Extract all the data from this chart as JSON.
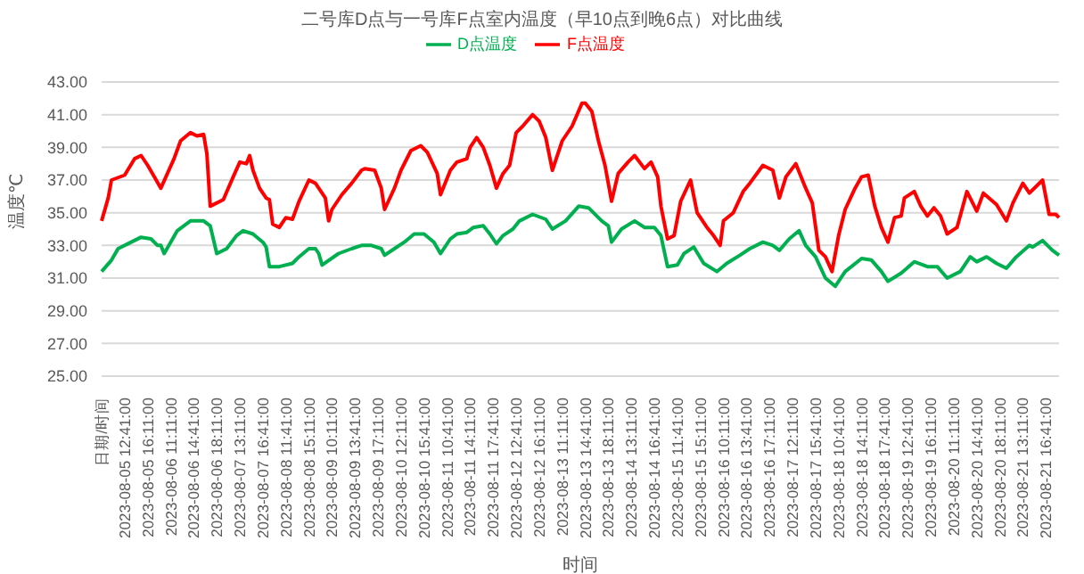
{
  "chart_data": {
    "type": "line",
    "title": "二号库D点与一号库F点室内温度（早10点到晚6点）对比曲线",
    "xlabel": "时间",
    "ylabel": "温度℃",
    "categories": [
      "日期/时间",
      null,
      null,
      null,
      null,
      null,
      null,
      "2023-08-05 12:41:00",
      null,
      null,
      null,
      null,
      null,
      null,
      "2023-08-05 16:11:00",
      null,
      null,
      null,
      null,
      null,
      null,
      "2023-08-06 11:11:00",
      null,
      null,
      null,
      null,
      null,
      null,
      "2023-08-06 14:41:00",
      null,
      null,
      null,
      null,
      null,
      null,
      "2023-08-06 18:11:00",
      null,
      null,
      null,
      null,
      null,
      null,
      "2023-08-07 13:11:00",
      null,
      null,
      null,
      null,
      null,
      null,
      "2023-08-07 16:41:00",
      null,
      null,
      null,
      null,
      null,
      null,
      "2023-08-08 11:41:00",
      null,
      null,
      null,
      null,
      null,
      null,
      "2023-08-08 15:11:00",
      null,
      null,
      null,
      null,
      null,
      null,
      "2023-08-09 10:11:00",
      null,
      null,
      null,
      null,
      null,
      null,
      "2023-08-09 13:41:00",
      null,
      null,
      null,
      null,
      null,
      null,
      "2023-08-09 17:11:00",
      null,
      null,
      null,
      null,
      null,
      null,
      "2023-08-10 12:11:00",
      null,
      null,
      null,
      null,
      null,
      null,
      "2023-08-10 15:41:00",
      null,
      null,
      null,
      null,
      null,
      null,
      "2023-08-11 10:41:00",
      null,
      null,
      null,
      null,
      null,
      null,
      "2023-08-11 14:11:00",
      null,
      null,
      null,
      null,
      null,
      null,
      "2023-08-11 17:41:00",
      null,
      null,
      null,
      null,
      null,
      null,
      "2023-08-12 12:41:00",
      null,
      null,
      null,
      null,
      null,
      null,
      "2023-08-12 16:11:00",
      null,
      null,
      null,
      null,
      null,
      null,
      "2023-08-13 11:11:00",
      null,
      null,
      null,
      null,
      null,
      null,
      "2023-08-13 14:41:00",
      null,
      null,
      null,
      null,
      null,
      null,
      "2023-08-13 18:11:00",
      null,
      null,
      null,
      null,
      null,
      null,
      "2023-08-14 13:11:00",
      null,
      null,
      null,
      null,
      null,
      null,
      "2023-08-14 16:41:00",
      null,
      null,
      null,
      null,
      null,
      null,
      "2023-08-15 11:41:00",
      null,
      null,
      null,
      null,
      null,
      null,
      "2023-08-15 15:11:00",
      null,
      null,
      null,
      null,
      null,
      null,
      "2023-08-16 10:11:00",
      null,
      null,
      null,
      null,
      null,
      null,
      "2023-08-16 13:41:00",
      null,
      null,
      null,
      null,
      null,
      null,
      "2023-08-16 17:11:00",
      null,
      null,
      null,
      null,
      null,
      null,
      "2023-08-17 12:11:00",
      null,
      null,
      null,
      null,
      null,
      null,
      "2023-08-17 15:41:00",
      null,
      null,
      null,
      null,
      null,
      null,
      "2023-08-18 10:41:00",
      null,
      null,
      null,
      null,
      null,
      null,
      "2023-08-18 14:11:00",
      null,
      null,
      null,
      null,
      null,
      null,
      "2023-08-18 17:41:00",
      null,
      null,
      null,
      null,
      null,
      null,
      "2023-08-19 12:41:00",
      null,
      null,
      null,
      null,
      null,
      null,
      "2023-08-19 16:11:00",
      null,
      null,
      null,
      null,
      null,
      null,
      "2023-08-20 11:11:00",
      null,
      null,
      null,
      null,
      null,
      null,
      "2023-08-20 14:41:00",
      null,
      null,
      null,
      null,
      null,
      null,
      "2023-08-20 18:11:00",
      null,
      null,
      null,
      null,
      null,
      null,
      "2023-08-21 13:11:00",
      null,
      null,
      null,
      null,
      null,
      null,
      "2023-08-21 16:41:00",
      null,
      null,
      null,
      null
    ],
    "series": [
      {
        "name": "D点温度",
        "color": "#00b050",
        "values": [
          31.4,
          null,
          null,
          32.1,
          null,
          32.8,
          null,
          null,
          null,
          33.2,
          null,
          null,
          33.5,
          null,
          null,
          33.4,
          null,
          33.0,
          33.0,
          32.5,
          null,
          33.2,
          null,
          33.9,
          null,
          null,
          null,
          34.5,
          null,
          null,
          null,
          34.5,
          null,
          34.2,
          null,
          32.5,
          null,
          null,
          32.8,
          null,
          null,
          33.6,
          null,
          33.9,
          null,
          null,
          33.7,
          null,
          null,
          33.2,
          32.9,
          31.7,
          null,
          null,
          31.7,
          null,
          null,
          null,
          31.9,
          null,
          32.3,
          null,
          null,
          32.8,
          null,
          32.8,
          32.5,
          31.8,
          null,
          null,
          null,
          null,
          32.5,
          null,
          null,
          null,
          32.8,
          null,
          null,
          33.0,
          null,
          null,
          33.0,
          null,
          null,
          32.8,
          32.4,
          null,
          null,
          32.8,
          null,
          null,
          33.2,
          null,
          null,
          33.7,
          null,
          null,
          33.7,
          null,
          null,
          33.2,
          null,
          32.5,
          null,
          null,
          33.4,
          null,
          33.7,
          null,
          null,
          33.8,
          null,
          34.1,
          null,
          null,
          34.2,
          null,
          33.7,
          null,
          33.1,
          null,
          33.6,
          null,
          null,
          34.0,
          null,
          34.5,
          null,
          null,
          null,
          34.9,
          null,
          null,
          null,
          34.6,
          null,
          34.0,
          null,
          null,
          null,
          34.5,
          null,
          null,
          null,
          35.4,
          null,
          null,
          35.3,
          null,
          null,
          null,
          34.5,
          null,
          34.2,
          33.2,
          null,
          null,
          34.0,
          null,
          null,
          null,
          34.5,
          null,
          null,
          34.1,
          null,
          null,
          34.1,
          null,
          33.6,
          null,
          31.7,
          null,
          null,
          31.8,
          null,
          32.5,
          null,
          null,
          32.9,
          null,
          null,
          31.9,
          null,
          null,
          null,
          31.4,
          null,
          null,
          31.9,
          null,
          null,
          null,
          32.4,
          null,
          null,
          32.8,
          null,
          null,
          null,
          33.2,
          null,
          null,
          33.0,
          null,
          32.7,
          null,
          null,
          33.4,
          null,
          null,
          33.9,
          null,
          33.0,
          null,
          null,
          32.3,
          null,
          null,
          31.0,
          null,
          null,
          30.5,
          null,
          null,
          31.4,
          null,
          null,
          null,
          null,
          32.2,
          null,
          null,
          32.1,
          null,
          null,
          31.4,
          null,
          30.8,
          null,
          null,
          null,
          31.3,
          null,
          null,
          null,
          32.0,
          null,
          null,
          null,
          31.7,
          null,
          null,
          31.7,
          null,
          null,
          31.0,
          null,
          null,
          null,
          31.4,
          null,
          null,
          32.3,
          null,
          32.0,
          null,
          null,
          32.3,
          null,
          null,
          31.9,
          null,
          null,
          31.6,
          null,
          null,
          32.3,
          null,
          null,
          null,
          33.0,
          32.9,
          null,
          null,
          33.3,
          null,
          null,
          32.7,
          null,
          32.4
        ]
      },
      {
        "name": "F点温度",
        "color": "#ff0000",
        "values": [
          34.5,
          null,
          35.9,
          37.0,
          null,
          null,
          null,
          37.3,
          null,
          null,
          38.3,
          null,
          38.5,
          null,
          37.9,
          null,
          37.2,
          null,
          36.5,
          null,
          37.4,
          null,
          38.3,
          null,
          39.4,
          null,
          null,
          39.9,
          null,
          39.7,
          null,
          39.8,
          38.6,
          35.4,
          null,
          null,
          null,
          35.8,
          null,
          null,
          37.2,
          null,
          38.1,
          null,
          38.0,
          38.5,
          37.6,
          null,
          36.5,
          null,
          35.9,
          35.8,
          34.3,
          null,
          34.1,
          null,
          34.7,
          null,
          34.6,
          null,
          35.7,
          null,
          null,
          37.0,
          null,
          36.8,
          null,
          null,
          35.9,
          34.5,
          35.2,
          null,
          null,
          36.1,
          null,
          null,
          36.8,
          null,
          null,
          37.6,
          37.7,
          null,
          null,
          37.6,
          null,
          36.5,
          35.2,
          null,
          null,
          36.5,
          null,
          37.6,
          null,
          null,
          38.8,
          null,
          null,
          39.1,
          null,
          38.7,
          null,
          null,
          37.4,
          36.1,
          null,
          null,
          37.6,
          null,
          38.1,
          null,
          null,
          38.3,
          39.0,
          null,
          39.6,
          null,
          39.0,
          null,
          37.9,
          null,
          36.5,
          null,
          37.4,
          null,
          37.9,
          null,
          39.9,
          null,
          40.3,
          null,
          null,
          41.0,
          null,
          40.6,
          null,
          39.6,
          null,
          37.6,
          null,
          null,
          39.4,
          null,
          null,
          40.3,
          null,
          null,
          41.7,
          41.7,
          null,
          41.2,
          null,
          39.4,
          null,
          37.9,
          null,
          35.7,
          null,
          37.4,
          null,
          null,
          38.1,
          null,
          38.5,
          null,
          null,
          37.7,
          null,
          38.1,
          null,
          37.2,
          35.4,
          null,
          33.4,
          null,
          33.6,
          null,
          35.7,
          null,
          null,
          37.0,
          null,
          35.0,
          null,
          null,
          34.1,
          null,
          33.6,
          null,
          33.0,
          34.5,
          null,
          null,
          35.0,
          null,
          null,
          36.3,
          null,
          36.8,
          null,
          null,
          null,
          37.9,
          null,
          null,
          37.6,
          null,
          35.9,
          null,
          37.2,
          null,
          null,
          38.0,
          null,
          null,
          36.5,
          null,
          35.6,
          null,
          32.7,
          null,
          32.3,
          null,
          31.4,
          null,
          33.6,
          null,
          35.2,
          null,
          null,
          36.5,
          null,
          37.2,
          null,
          37.3,
          null,
          35.4,
          null,
          34.1,
          null,
          33.2,
          null,
          34.7,
          null,
          34.8,
          35.9,
          null,
          null,
          36.3,
          null,
          35.4,
          null,
          34.8,
          null,
          35.3,
          null,
          34.8,
          null,
          33.7,
          null,
          null,
          34.1,
          null,
          null,
          36.3,
          null,
          null,
          35.1,
          null,
          36.2,
          null,
          null,
          null,
          35.5,
          null,
          null,
          34.5,
          null,
          35.6,
          null,
          null,
          36.8,
          null,
          36.2,
          null,
          null,
          null,
          37.0,
          null,
          34.9,
          null,
          34.9,
          34.7
        ]
      }
    ],
    "ylim": [
      25,
      43
    ],
    "yticks": [
      {
        "value": 25,
        "label": "25.00"
      },
      {
        "value": 27,
        "label": "27.00"
      },
      {
        "value": 29,
        "label": "29.00"
      },
      {
        "value": 31,
        "label": "31.00"
      },
      {
        "value": 33,
        "label": "33.00"
      },
      {
        "value": 35,
        "label": "35.00"
      },
      {
        "value": 37,
        "label": "37.00"
      },
      {
        "value": 39,
        "label": "39.00"
      },
      {
        "value": 41,
        "label": "41.00"
      },
      {
        "value": 43,
        "label": "43.00"
      }
    ],
    "grid": "y",
    "legend": "top",
    "marker": "none",
    "line_style": "solid"
  }
}
